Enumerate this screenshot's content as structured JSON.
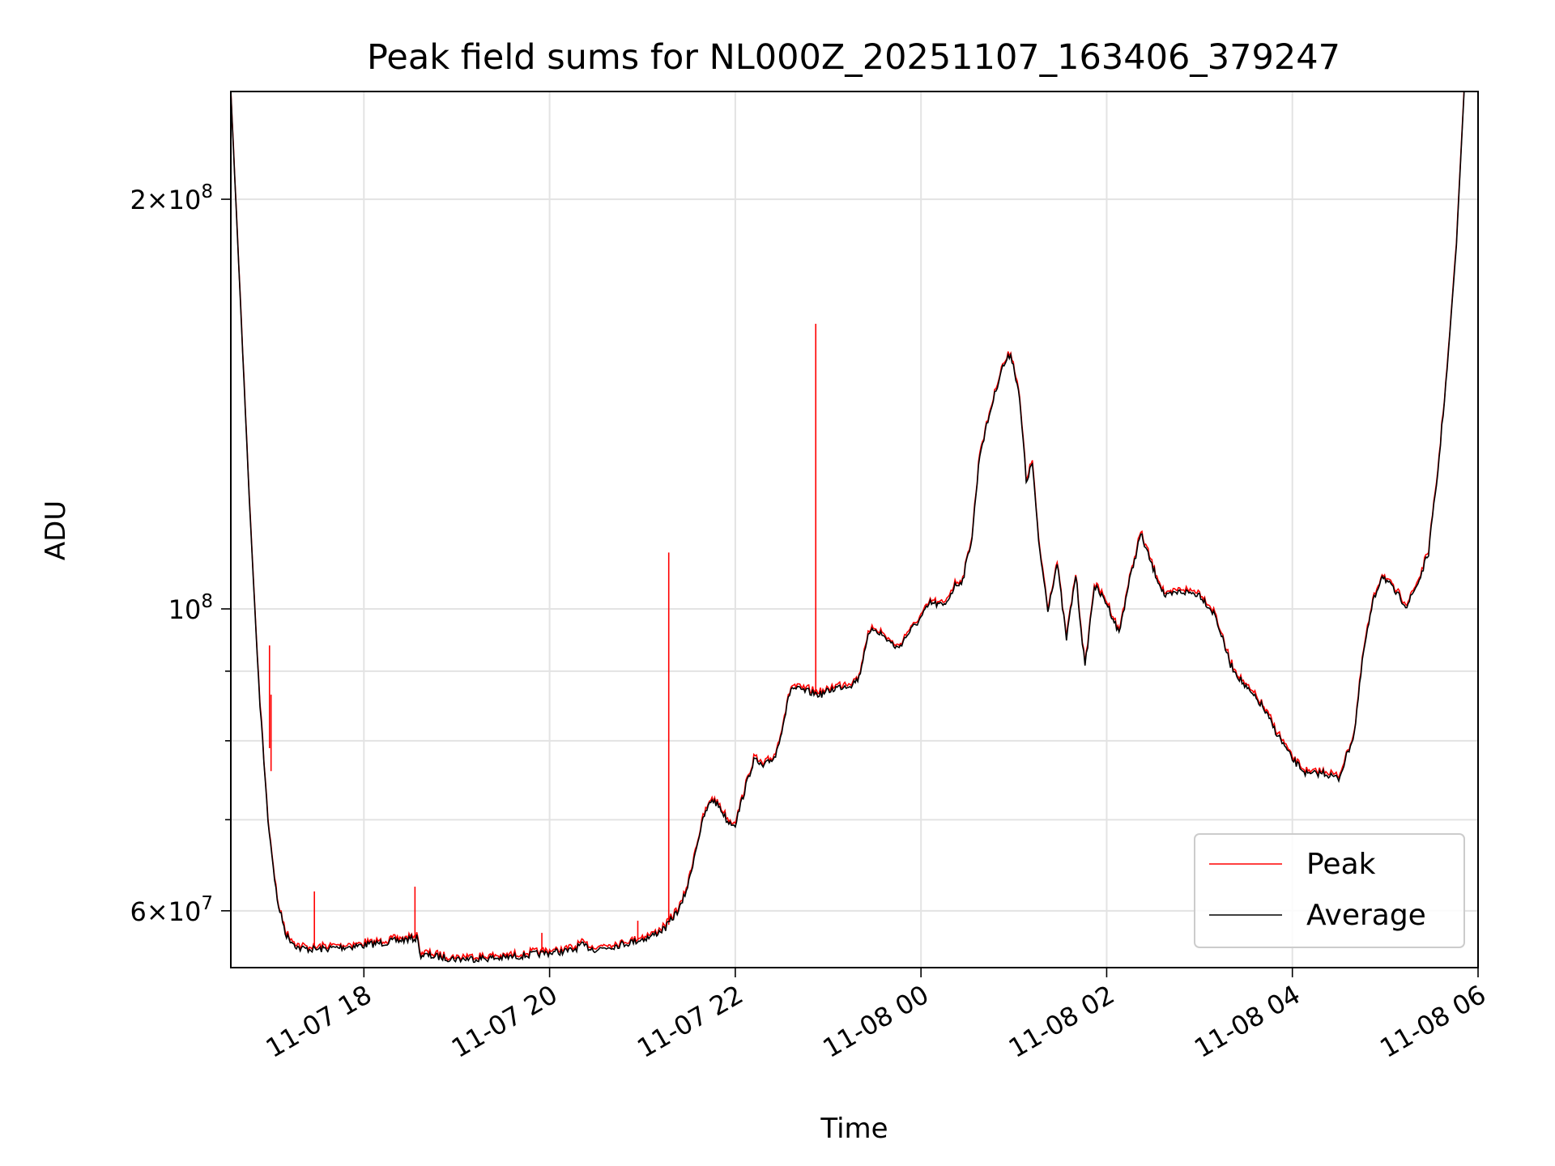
{
  "chart_data": {
    "type": "line",
    "title": "Peak field sums for NL000Z_20251107_163406_379247",
    "xlabel": "Time",
    "ylabel": "ADU",
    "y_scale": "log",
    "grid": true,
    "legend_position": "lower-right",
    "xlim": [
      "2025-11-07 16:34",
      "2025-11-08 06:00"
    ],
    "ylim": [
      54500000,
      240000000
    ],
    "x_ticks": [
      {
        "t": "2025-11-07 18:00",
        "label": "11-07 18"
      },
      {
        "t": "2025-11-07 20:00",
        "label": "11-07 20"
      },
      {
        "t": "2025-11-07 22:00",
        "label": "11-07 22"
      },
      {
        "t": "2025-11-08 00:00",
        "label": "11-08 00"
      },
      {
        "t": "2025-11-08 02:00",
        "label": "11-08 02"
      },
      {
        "t": "2025-11-08 04:00",
        "label": "11-08 04"
      },
      {
        "t": "2025-11-08 06:00",
        "label": "11-08 06"
      }
    ],
    "y_major_ticks": [
      {
        "v": 200000000,
        "mant": "2",
        "exp": "8"
      },
      {
        "v": 100000000,
        "mant": "",
        "exp": "8"
      },
      {
        "v": 60000000,
        "mant": "6",
        "exp": "7"
      }
    ],
    "y_minor_gridlines": [
      70000000,
      80000000,
      90000000
    ],
    "series": [
      {
        "name": "Average",
        "color": "#000000",
        "points": [
          [
            "2025-11-07 16:34",
            240000000
          ],
          [
            "2025-11-07 16:40",
            170000000
          ],
          [
            "2025-11-07 16:46",
            120000000
          ],
          [
            "2025-11-07 16:52",
            88000000
          ],
          [
            "2025-11-07 16:58",
            70000000
          ],
          [
            "2025-11-07 17:04",
            61000000
          ],
          [
            "2025-11-07 17:10",
            57500000
          ],
          [
            "2025-11-07 17:18",
            56300000
          ],
          [
            "2025-11-07 17:30",
            56200000
          ],
          [
            "2025-11-07 17:45",
            56400000
          ],
          [
            "2025-11-07 18:00",
            56600000
          ],
          [
            "2025-11-07 18:15",
            56900000
          ],
          [
            "2025-11-07 18:30",
            57200000
          ],
          [
            "2025-11-07 18:35",
            57300000
          ],
          [
            "2025-11-07 18:36",
            55700000
          ],
          [
            "2025-11-07 19:00",
            55300000
          ],
          [
            "2025-11-07 19:30",
            55400000
          ],
          [
            "2025-11-07 20:00",
            55900000
          ],
          [
            "2025-11-07 20:15",
            56100000
          ],
          [
            "2025-11-07 20:20",
            56600000
          ],
          [
            "2025-11-07 20:30",
            56200000
          ],
          [
            "2025-11-07 20:50",
            56800000
          ],
          [
            "2025-11-07 21:05",
            57400000
          ],
          [
            "2025-11-07 21:15",
            58300000
          ],
          [
            "2025-11-07 21:25",
            60500000
          ],
          [
            "2025-11-07 21:30",
            63000000
          ],
          [
            "2025-11-07 21:35",
            67000000
          ],
          [
            "2025-11-07 21:40",
            70500000
          ],
          [
            "2025-11-07 21:45",
            72500000
          ],
          [
            "2025-11-07 21:50",
            71500000
          ],
          [
            "2025-11-07 21:55",
            69800000
          ],
          [
            "2025-11-07 22:00",
            69500000
          ],
          [
            "2025-11-07 22:06",
            73500000
          ],
          [
            "2025-11-07 22:12",
            77500000
          ],
          [
            "2025-11-07 22:18",
            76500000
          ],
          [
            "2025-11-07 22:26",
            78000000
          ],
          [
            "2025-11-07 22:30",
            81500000
          ],
          [
            "2025-11-07 22:36",
            87500000
          ],
          [
            "2025-11-07 22:45",
            87000000
          ],
          [
            "2025-11-07 22:55",
            86500000
          ],
          [
            "2025-11-07 23:05",
            87500000
          ],
          [
            "2025-11-07 23:15",
            88000000
          ],
          [
            "2025-11-07 23:20",
            89000000
          ],
          [
            "2025-11-07 23:25",
            95000000
          ],
          [
            "2025-11-07 23:30",
            96800000
          ],
          [
            "2025-11-07 23:38",
            95000000
          ],
          [
            "2025-11-07 23:45",
            93500000
          ],
          [
            "2025-11-07 23:52",
            96000000
          ],
          [
            "2025-11-08 00:00",
            98500000
          ],
          [
            "2025-11-08 00:06",
            101000000
          ],
          [
            "2025-11-08 00:15",
            100500000
          ],
          [
            "2025-11-08 00:22",
            104000000
          ],
          [
            "2025-11-08 00:27",
            105000000
          ],
          [
            "2025-11-08 00:33",
            113000000
          ],
          [
            "2025-11-08 00:38",
            130000000
          ],
          [
            "2025-11-08 00:45",
            140000000
          ],
          [
            "2025-11-08 00:52",
            150000000
          ],
          [
            "2025-11-08 00:58",
            154000000
          ],
          [
            "2025-11-08 01:03",
            145000000
          ],
          [
            "2025-11-08 01:06",
            133000000
          ],
          [
            "2025-11-08 01:08",
            124000000
          ],
          [
            "2025-11-08 01:12",
            128000000
          ],
          [
            "2025-11-08 01:16",
            112000000
          ],
          [
            "2025-11-08 01:22",
            100000000
          ],
          [
            "2025-11-08 01:28",
            108000000
          ],
          [
            "2025-11-08 01:34",
            95000000
          ],
          [
            "2025-11-08 01:40",
            106000000
          ],
          [
            "2025-11-08 01:46",
            90500000
          ],
          [
            "2025-11-08 01:52",
            104000000
          ],
          [
            "2025-11-08 02:00",
            101000000
          ],
          [
            "2025-11-08 02:08",
            96000000
          ],
          [
            "2025-11-08 02:14",
            104000000
          ],
          [
            "2025-11-08 02:22",
            113500000
          ],
          [
            "2025-11-08 02:30",
            107000000
          ],
          [
            "2025-11-08 02:38",
            102000000
          ],
          [
            "2025-11-08 02:48",
            103000000
          ],
          [
            "2025-11-08 03:00",
            102500000
          ],
          [
            "2025-11-08 03:10",
            99000000
          ],
          [
            "2025-11-08 03:20",
            91000000
          ],
          [
            "2025-11-08 03:30",
            87500000
          ],
          [
            "2025-11-08 03:40",
            85000000
          ],
          [
            "2025-11-08 03:50",
            81000000
          ],
          [
            "2025-11-08 04:00",
            77500000
          ],
          [
            "2025-11-08 04:10",
            75500000
          ],
          [
            "2025-11-08 04:20",
            75800000
          ],
          [
            "2025-11-08 04:30",
            75000000
          ],
          [
            "2025-11-08 04:40",
            81000000
          ],
          [
            "2025-11-08 04:46",
            93000000
          ],
          [
            "2025-11-08 04:52",
            101000000
          ],
          [
            "2025-11-08 04:58",
            106000000
          ],
          [
            "2025-11-08 05:06",
            103000000
          ],
          [
            "2025-11-08 05:14",
            100500000
          ],
          [
            "2025-11-08 05:22",
            105000000
          ],
          [
            "2025-11-08 05:28",
            110000000
          ],
          [
            "2025-11-08 05:34",
            126000000
          ],
          [
            "2025-11-08 05:40",
            150000000
          ],
          [
            "2025-11-08 05:46",
            185000000
          ],
          [
            "2025-11-08 05:51",
            240000000
          ]
        ]
      },
      {
        "name": "Peak",
        "color": "#ff0000",
        "spikes": [
          {
            "t": "2025-11-07 16:59",
            "base": 79000000,
            "peak": 94000000
          },
          {
            "t": "2025-11-07 17:00",
            "base": 76000000,
            "peak": 86500000
          },
          {
            "t": "2025-11-07 17:28",
            "base": 56500000,
            "peak": 62000000
          },
          {
            "t": "2025-11-07 18:33",
            "base": 57400000,
            "peak": 62500000
          },
          {
            "t": "2025-11-07 19:55",
            "base": 55900000,
            "peak": 57800000
          },
          {
            "t": "2025-11-07 20:57",
            "base": 57100000,
            "peak": 59000000
          },
          {
            "t": "2025-11-07 21:17",
            "base": 58600000,
            "peak": 110000000
          },
          {
            "t": "2025-11-07 22:52",
            "base": 86500000,
            "peak": 162000000
          }
        ]
      }
    ]
  }
}
